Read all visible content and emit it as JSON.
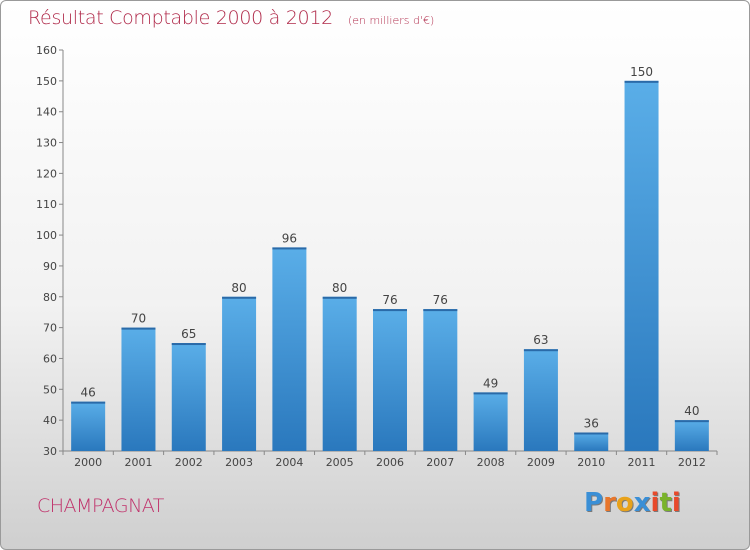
{
  "title": "Résultat Comptable 2000 à 2012",
  "unit_note": "(en milliers d'€)",
  "commune": "CHAMPAGNAT",
  "logo": {
    "text": "Proxiti",
    "letters": [
      {
        "ch": "P",
        "color": "#3a8fd6"
      },
      {
        "ch": "r",
        "color": "#e8762b"
      },
      {
        "ch": "o",
        "color": "#e8a21b"
      },
      {
        "ch": "x",
        "color": "#3a8fd6"
      },
      {
        "ch": "i",
        "color": "#e84a2b"
      },
      {
        "ch": "t",
        "color": "#7ab32a"
      },
      {
        "ch": "i",
        "color": "#e84a2b"
      }
    ]
  },
  "colors": {
    "bar_top": "#5aaee8",
    "bar_bottom": "#2a78bd",
    "title": "#b02a4a",
    "commune": "#c0306a"
  },
  "chart_data": {
    "type": "bar",
    "title": "Résultat Comptable 2000 à 2012",
    "subtitle": "(en milliers d'€)",
    "xlabel": "",
    "ylabel": "",
    "categories": [
      "2000",
      "2001",
      "2002",
      "2003",
      "2004",
      "2005",
      "2006",
      "2007",
      "2008",
      "2009",
      "2010",
      "2011",
      "2012"
    ],
    "values": [
      46,
      70,
      65,
      80,
      96,
      80,
      76,
      76,
      49,
      63,
      36,
      150,
      40
    ],
    "ylim": [
      30,
      160
    ],
    "yticks": [
      30,
      40,
      50,
      60,
      70,
      80,
      90,
      100,
      110,
      120,
      130,
      140,
      150,
      160
    ],
    "grid": false,
    "legend": "none"
  }
}
